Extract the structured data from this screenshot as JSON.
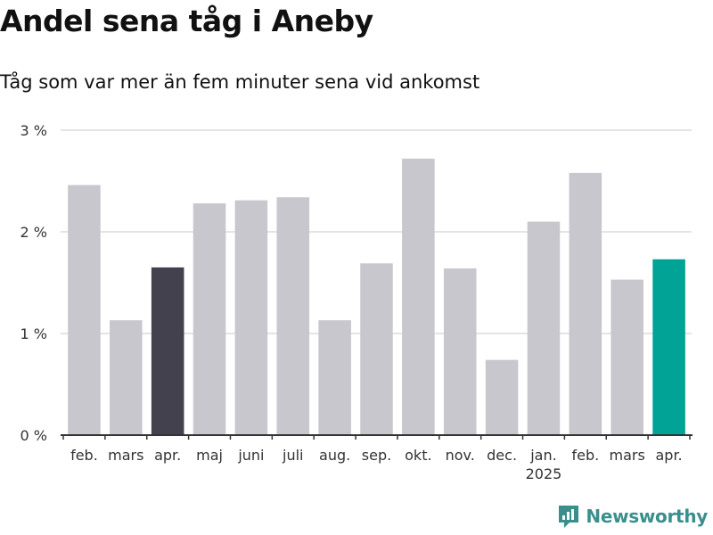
{
  "title": "Andel sena tåg i Aneby",
  "subtitle": "Tåg som var mer än fem minuter sena vid ankomst",
  "brand": {
    "name": "Newsworthy",
    "icon": "newsworthy-logo-icon",
    "color": "#3a8f8c"
  },
  "colors": {
    "default_bar": "#c8c7ce",
    "highlight_dark": "#42414d",
    "highlight_current": "#00a396",
    "grid": "#dcdcdc",
    "axis": "#333333"
  },
  "chart_data": {
    "type": "bar",
    "categories": [
      "feb.",
      "mars",
      "apr.",
      "maj",
      "juni",
      "juli",
      "aug.",
      "sep.",
      "okt.",
      "nov.",
      "dec.",
      "jan.",
      "feb.",
      "mars",
      "apr."
    ],
    "year_labels": [
      {
        "category_index": 11,
        "label": "2025"
      }
    ],
    "series": [
      {
        "values": [
          2.46,
          1.13,
          1.65,
          2.28,
          2.31,
          2.34,
          1.13,
          1.69,
          2.72,
          1.64,
          0.74,
          2.1,
          2.58,
          1.53,
          1.73
        ]
      }
    ],
    "bar_highlights": [
      "default",
      "default",
      "dark",
      "default",
      "default",
      "default",
      "default",
      "default",
      "default",
      "default",
      "default",
      "default",
      "default",
      "default",
      "current"
    ],
    "yticks": [
      {
        "value": 0,
        "label": "0 %"
      },
      {
        "value": 1,
        "label": "1 %"
      },
      {
        "value": 2,
        "label": "2 %"
      },
      {
        "value": 3,
        "label": "3 %"
      }
    ],
    "ylim": [
      0,
      3
    ],
    "grid": true,
    "legend": "none"
  }
}
